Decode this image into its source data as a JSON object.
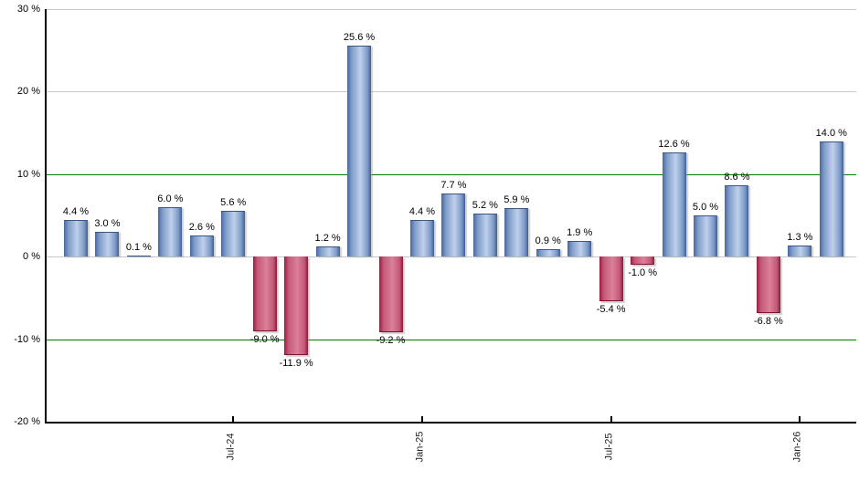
{
  "chart_data": {
    "type": "bar",
    "title": "",
    "xlabel": "",
    "ylabel": "",
    "unit": "%",
    "grid": true,
    "legend": null,
    "y_axis": {
      "min": -20,
      "max": 30,
      "ticks": [
        {
          "value": 30,
          "label": "30 %"
        },
        {
          "value": 20,
          "label": "20 %"
        },
        {
          "value": 10,
          "label": "10 %"
        },
        {
          "value": 0,
          "label": "0 %"
        },
        {
          "value": -10,
          "label": "-10 %"
        },
        {
          "value": -20,
          "label": "-20 %"
        }
      ],
      "highlight_values": [
        10,
        -10
      ]
    },
    "x_axis": {
      "ticks": [
        {
          "bar_index": 5,
          "label": "Jul-24"
        },
        {
          "bar_index": 11,
          "label": "Jan-25"
        },
        {
          "bar_index": 17,
          "label": "Jul-25"
        },
        {
          "bar_index": 23,
          "label": "Jan-26"
        }
      ]
    },
    "bars": [
      {
        "value": 4.4,
        "label": "4.4 %"
      },
      {
        "value": 3.0,
        "label": "3.0 %"
      },
      {
        "value": 0.1,
        "label": "0.1 %"
      },
      {
        "value": 6.0,
        "label": "6.0 %"
      },
      {
        "value": 2.6,
        "label": "2.6 %"
      },
      {
        "value": 5.6,
        "label": "5.6 %"
      },
      {
        "value": -9.0,
        "label": "-9.0 %"
      },
      {
        "value": -11.9,
        "label": "-11.9 %"
      },
      {
        "value": 1.2,
        "label": "1.2 %"
      },
      {
        "value": 25.6,
        "label": "25.6 %"
      },
      {
        "value": -9.2,
        "label": "-9.2 %"
      },
      {
        "value": 4.4,
        "label": "4.4 %"
      },
      {
        "value": 7.7,
        "label": "7.7 %"
      },
      {
        "value": 5.2,
        "label": "5.2 %"
      },
      {
        "value": 5.9,
        "label": "5.9 %"
      },
      {
        "value": 0.9,
        "label": "0.9 %"
      },
      {
        "value": 1.9,
        "label": "1.9 %"
      },
      {
        "value": -5.4,
        "label": "-5.4 %"
      },
      {
        "value": -1.0,
        "label": "-1.0 %"
      },
      {
        "value": 12.6,
        "label": "12.6 %"
      },
      {
        "value": 5.0,
        "label": "5.0 %"
      },
      {
        "value": 8.6,
        "label": "8.6 %"
      },
      {
        "value": -6.8,
        "label": "-6.8 %"
      },
      {
        "value": 1.3,
        "label": "1.3 %"
      },
      {
        "value": 14.0,
        "label": "14.0 %"
      }
    ],
    "colors": {
      "positive_bar": "#7d9bc8",
      "negative_bar": "#c45878",
      "grid": "#c9c9c9",
      "grid_highlight": "#007b00",
      "axis": "#000000",
      "background": "#ffffff"
    }
  }
}
